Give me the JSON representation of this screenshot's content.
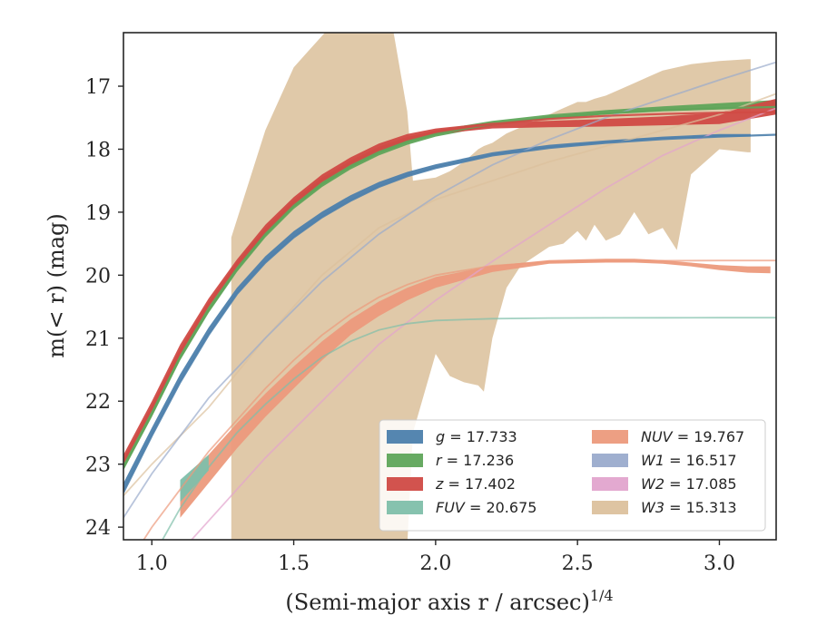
{
  "chart_data": {
    "type": "line",
    "xlabel": "(Semi-major axis r / arcsec)",
    "xlabel_exponent": "1/4",
    "ylabel": "m(< r) (mag)",
    "xlim": [
      0.9,
      3.2
    ],
    "ylim": [
      24.2,
      16.15
    ],
    "y_inverted": true,
    "x_ticks": [
      "1.0",
      "1.5",
      "2.0",
      "2.5",
      "3.0"
    ],
    "y_ticks": [
      "17",
      "18",
      "19",
      "20",
      "21",
      "22",
      "23",
      "24"
    ],
    "legend_position": "lower-right",
    "legend_columns": 2,
    "series": [
      {
        "name": "g = 17.733",
        "label_var": "g",
        "label_val": "17.733",
        "color": "#4c7fac",
        "x": [
          0.9,
          1.0,
          1.1,
          1.2,
          1.3,
          1.4,
          1.5,
          1.6,
          1.7,
          1.8,
          1.9,
          2.0,
          2.2,
          2.4,
          2.6,
          2.8,
          3.0,
          3.2
        ],
        "y": [
          23.45,
          22.55,
          21.7,
          20.95,
          20.3,
          19.8,
          19.4,
          19.08,
          18.82,
          18.6,
          18.43,
          18.3,
          18.1,
          17.98,
          17.9,
          17.84,
          17.8,
          17.77
        ],
        "band_x": [
          0.9,
          1.0,
          1.1,
          1.2,
          1.3,
          1.4,
          1.5,
          1.6,
          1.7,
          1.8,
          1.9,
          2.0,
          2.2,
          2.4,
          2.6,
          2.8,
          3.0,
          3.11
        ],
        "band_lo": [
          23.45,
          22.55,
          21.7,
          20.95,
          20.3,
          19.8,
          19.4,
          19.08,
          18.82,
          18.6,
          18.43,
          18.3,
          18.1,
          17.98,
          17.9,
          17.84,
          17.8,
          17.8
        ],
        "band_hi": [
          23.3,
          22.42,
          21.57,
          20.83,
          20.2,
          19.7,
          19.3,
          18.99,
          18.73,
          18.52,
          18.36,
          18.24,
          18.05,
          17.93,
          17.86,
          17.8,
          17.76,
          17.76
        ]
      },
      {
        "name": "r = 17.236",
        "label_var": "r",
        "label_val": "17.236",
        "color": "#5fa55a",
        "x": [
          0.9,
          1.0,
          1.1,
          1.2,
          1.3,
          1.4,
          1.5,
          1.6,
          1.7,
          1.8,
          1.9,
          2.0,
          2.2,
          2.4,
          2.6,
          2.8,
          3.0,
          3.2
        ],
        "y": [
          23.05,
          22.2,
          21.3,
          20.55,
          19.9,
          19.35,
          18.9,
          18.55,
          18.27,
          18.05,
          17.88,
          17.76,
          17.6,
          17.5,
          17.43,
          17.38,
          17.35,
          17.33
        ],
        "band_x": [
          0.9,
          1.0,
          1.1,
          1.2,
          1.3,
          1.4,
          1.5,
          1.6,
          1.7,
          1.8,
          1.9,
          2.0,
          2.2,
          2.4,
          2.6,
          2.8,
          3.0,
          3.2
        ],
        "band_lo": [
          23.1,
          22.25,
          21.35,
          20.6,
          19.95,
          19.4,
          18.95,
          18.6,
          18.32,
          18.1,
          17.93,
          17.8,
          17.63,
          17.52,
          17.45,
          17.4,
          17.37,
          17.35
        ],
        "band_hi": [
          22.95,
          22.1,
          21.2,
          20.45,
          19.8,
          19.27,
          18.83,
          18.48,
          18.2,
          17.98,
          17.82,
          17.7,
          17.55,
          17.45,
          17.38,
          17.32,
          17.27,
          17.22
        ]
      },
      {
        "name": "z = 17.402",
        "label_var": "z",
        "label_val": "17.402",
        "color": "#d04a45",
        "x": [
          0.9,
          1.0,
          1.1,
          1.2,
          1.3,
          1.4,
          1.5,
          1.6,
          1.7,
          1.8,
          1.9,
          2.0,
          2.2,
          2.4,
          2.6,
          2.8,
          3.0,
          3.2
        ],
        "y": [
          22.95,
          22.1,
          21.2,
          20.45,
          19.82,
          19.28,
          18.83,
          18.47,
          18.2,
          17.98,
          17.82,
          17.72,
          17.6,
          17.52,
          17.47,
          17.44,
          17.42,
          17.41
        ],
        "band_x": [
          0.9,
          1.0,
          1.1,
          1.2,
          1.3,
          1.4,
          1.5,
          1.6,
          1.7,
          1.8,
          1.9,
          2.0,
          2.2,
          2.4,
          2.6,
          2.8,
          3.0,
          3.2
        ],
        "band_lo": [
          23.0,
          22.15,
          21.26,
          20.5,
          19.87,
          19.33,
          18.88,
          18.52,
          18.25,
          18.03,
          17.87,
          17.76,
          17.67,
          17.65,
          17.64,
          17.62,
          17.6,
          17.45
        ],
        "band_hi": [
          22.85,
          22.0,
          21.1,
          20.37,
          19.75,
          19.2,
          18.76,
          18.4,
          18.13,
          17.91,
          17.76,
          17.67,
          17.58,
          17.55,
          17.52,
          17.48,
          17.42,
          17.2
        ]
      },
      {
        "name": "FUV = 20.675",
        "label_var": "FUV",
        "label_val": "20.675",
        "color": "#7fbfaa",
        "x": [
          1.0,
          1.1,
          1.2,
          1.3,
          1.4,
          1.5,
          1.6,
          1.7,
          1.8,
          1.9,
          2.0,
          2.2,
          2.4,
          2.6,
          2.8,
          3.0,
          3.2
        ],
        "y": [
          24.5,
          23.7,
          23.05,
          22.5,
          22.05,
          21.65,
          21.3,
          21.05,
          20.87,
          20.77,
          20.72,
          20.69,
          20.68,
          20.677,
          20.676,
          20.675,
          20.675
        ],
        "band_x": [
          1.1,
          1.15,
          1.2
        ],
        "band_lo": [
          23.6,
          23.35,
          23.1
        ],
        "band_hi": [
          23.25,
          23.05,
          22.85
        ]
      },
      {
        "name": "NUV = 19.767",
        "label_var": "NUV",
        "label_val": "19.767",
        "color": "#ec9a7c",
        "x": [
          0.9,
          1.0,
          1.1,
          1.2,
          1.3,
          1.4,
          1.5,
          1.6,
          1.7,
          1.8,
          1.9,
          2.0,
          2.2,
          2.4,
          2.6,
          2.8,
          3.0,
          3.2
        ],
        "y": [
          24.7,
          24.0,
          23.4,
          22.8,
          22.3,
          21.8,
          21.35,
          20.95,
          20.62,
          20.35,
          20.15,
          20.0,
          19.85,
          19.79,
          19.775,
          19.77,
          19.768,
          19.767
        ],
        "band_x": [
          1.1,
          1.2,
          1.3,
          1.4,
          1.5,
          1.6,
          1.7,
          1.8,
          1.9,
          2.0,
          2.2,
          2.4,
          2.6,
          2.7,
          2.8,
          2.9,
          3.0,
          3.1,
          3.18
        ],
        "band_lo": [
          23.85,
          23.3,
          22.75,
          22.25,
          21.8,
          21.35,
          20.95,
          20.65,
          20.4,
          20.2,
          19.95,
          19.82,
          19.8,
          19.8,
          19.82,
          19.86,
          19.92,
          19.96,
          19.97
        ],
        "band_hi": [
          23.35,
          22.85,
          22.35,
          21.88,
          21.45,
          21.05,
          20.7,
          20.42,
          20.2,
          20.03,
          19.85,
          19.76,
          19.74,
          19.74,
          19.76,
          19.8,
          19.84,
          19.86,
          19.86
        ]
      },
      {
        "name": "W1 = 16.517",
        "label_var": "W1",
        "label_val": "16.517",
        "color": "#9aabcc",
        "x": [
          0.9,
          1.0,
          1.2,
          1.4,
          1.6,
          1.8,
          2.0,
          2.2,
          2.4,
          2.6,
          2.8,
          3.0,
          3.2
        ],
        "y": [
          23.85,
          23.15,
          21.95,
          21.0,
          20.1,
          19.35,
          18.75,
          18.25,
          17.85,
          17.5,
          17.2,
          16.9,
          16.62
        ],
        "band_x": [],
        "band_lo": [],
        "band_hi": []
      },
      {
        "name": "W2 = 17.085",
        "label_var": "W2",
        "label_val": "17.085",
        "color": "#e2a4cd",
        "x": [
          1.1,
          1.2,
          1.4,
          1.6,
          1.8,
          2.0,
          2.2,
          2.4,
          2.6,
          2.8,
          3.0,
          3.2
        ],
        "y": [
          24.4,
          23.9,
          22.9,
          22.0,
          21.1,
          20.4,
          19.78,
          19.2,
          18.62,
          18.1,
          17.7,
          17.35
        ],
        "band_x": [],
        "band_lo": [],
        "band_hi": []
      },
      {
        "name": "W3 = 15.313",
        "label_var": "W3",
        "label_val": "15.313",
        "color": "#dcc19d",
        "x": [
          0.9,
          1.0,
          1.2,
          1.4,
          1.6,
          1.8,
          2.0,
          2.2,
          2.4,
          2.6,
          2.8,
          3.0,
          3.2
        ],
        "y": [
          23.5,
          23.0,
          22.1,
          21.0,
          20.0,
          19.25,
          18.8,
          18.5,
          18.2,
          17.95,
          17.7,
          17.45,
          17.12
        ],
        "band_x": [
          1.28,
          1.4,
          1.5,
          1.55,
          1.62,
          1.7,
          1.8,
          1.85,
          1.9,
          1.92,
          2.0,
          2.05,
          2.1,
          2.15,
          2.17,
          2.2,
          2.25,
          2.3,
          2.35,
          2.4,
          2.45,
          2.5,
          2.53,
          2.56,
          2.6,
          2.65,
          2.7,
          2.75,
          2.8,
          2.85,
          2.9,
          3.0,
          3.1,
          3.11
        ],
        "band_lo": [
          24.3,
          24.3,
          24.3,
          24.3,
          24.3,
          24.3,
          24.3,
          24.3,
          24.3,
          22.5,
          21.25,
          21.6,
          21.7,
          21.75,
          21.85,
          21.0,
          20.2,
          19.85,
          19.7,
          19.55,
          19.5,
          19.3,
          19.45,
          19.2,
          19.45,
          19.35,
          19.0,
          19.35,
          19.25,
          19.6,
          18.4,
          18.0,
          18.05,
          18.05
        ],
        "band_hi": [
          19.4,
          17.7,
          16.7,
          16.45,
          16.1,
          16.1,
          16.1,
          16.1,
          17.4,
          18.5,
          18.45,
          18.35,
          18.2,
          18.0,
          17.95,
          17.9,
          17.75,
          17.65,
          17.55,
          17.45,
          17.35,
          17.25,
          17.25,
          17.2,
          17.15,
          17.05,
          16.95,
          16.85,
          16.75,
          16.7,
          16.65,
          16.6,
          16.57,
          16.57
        ]
      }
    ]
  }
}
